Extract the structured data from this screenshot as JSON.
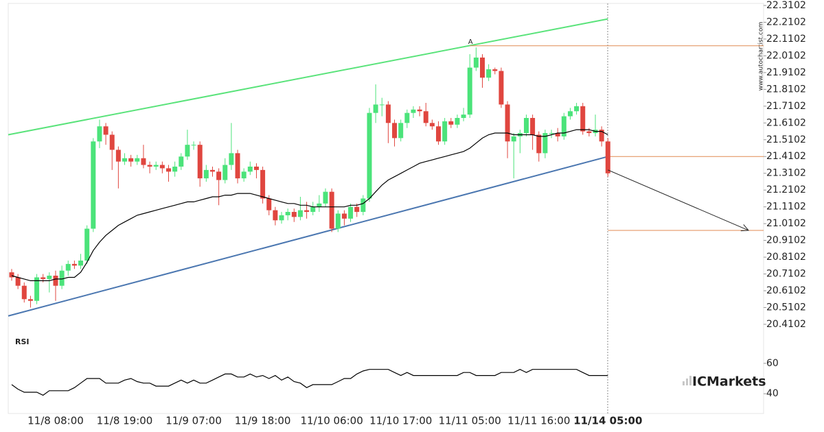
{
  "chart_data": {
    "type": "candlestick",
    "rsi_label": "RSI",
    "pattern_label": "A",
    "watermark": "www.autochartist.com",
    "brand": "ICMarkets",
    "up_color": "#4be37a",
    "down_color": "#e0463f",
    "ylim": [
      20.3405,
      22.3225
    ],
    "yticks": [
      20.4102,
      20.5102,
      20.6102,
      20.7102,
      20.8102,
      20.9102,
      21.0102,
      21.1102,
      21.2102,
      21.3102,
      21.4102,
      21.5102,
      21.6102,
      21.7102,
      21.8102,
      21.9102,
      22.0102,
      22.1102,
      22.2102,
      22.3102
    ],
    "categories": [
      null,
      null,
      null,
      null,
      null,
      null,
      null,
      "11/8 08:00",
      null,
      null,
      null,
      null,
      null,
      null,
      null,
      null,
      null,
      null,
      "11/8 19:00",
      null,
      null,
      null,
      null,
      null,
      null,
      null,
      null,
      null,
      null,
      "11/9 07:00",
      null,
      null,
      null,
      null,
      null,
      null,
      null,
      null,
      null,
      null,
      "11/9 18:00",
      null,
      null,
      null,
      null,
      null,
      null,
      null,
      null,
      null,
      null,
      "11/10 06:00",
      null,
      null,
      null,
      null,
      null,
      null,
      null,
      null,
      null,
      null,
      "11/10 17:00",
      null,
      null,
      null,
      null,
      null,
      null,
      null,
      null,
      null,
      null,
      "11/11 05:00",
      null,
      null,
      null,
      null,
      null,
      null,
      null,
      null,
      null,
      null,
      "11/11 16:00",
      null,
      null,
      null,
      null,
      null,
      null,
      null,
      null,
      null,
      null,
      "11/14 05:00"
    ],
    "open": [
      20.72,
      20.69,
      20.64,
      20.56,
      20.55,
      20.69,
      20.68,
      20.7,
      20.64,
      20.73,
      20.77,
      20.76,
      20.79,
      20.98,
      21.5,
      21.59,
      21.54,
      21.45,
      21.38,
      21.4,
      21.38,
      21.4,
      21.36,
      21.35,
      21.36,
      21.34,
      21.32,
      21.35,
      21.41,
      21.48,
      21.48,
      21.28,
      21.33,
      21.32,
      21.27,
      21.36,
      21.43,
      21.28,
      21.32,
      21.35,
      21.33,
      21.16,
      21.09,
      21.03,
      21.06,
      21.08,
      21.05,
      21.09,
      21.08,
      21.11,
      21.13,
      21.2,
      20.98,
      21.07,
      21.04,
      21.11,
      21.08,
      21.16,
      21.67,
      21.72,
      21.72,
      21.61,
      21.52,
      21.61,
      21.67,
      21.69,
      21.68,
      21.61,
      21.59,
      21.5,
      21.62,
      21.6,
      21.64,
      21.66,
      21.94,
      22.0,
      21.88,
      21.93,
      21.92,
      21.72,
      21.5,
      21.53,
      21.55,
      21.64,
      21.54,
      21.43,
      21.55,
      21.55,
      21.53,
      21.65,
      21.68,
      21.71,
      21.56,
      21.55,
      21.57,
      21.5
    ],
    "high": [
      20.74,
      20.71,
      20.66,
      20.58,
      20.71,
      20.71,
      20.72,
      20.73,
      20.76,
      20.79,
      20.79,
      20.83,
      21.0,
      21.52,
      21.63,
      21.61,
      21.56,
      21.47,
      21.43,
      21.42,
      21.42,
      21.48,
      21.38,
      21.38,
      21.38,
      21.36,
      21.38,
      21.43,
      21.57,
      21.5,
      21.5,
      21.36,
      21.35,
      21.34,
      21.4,
      21.61,
      21.45,
      21.34,
      21.38,
      21.37,
      21.35,
      21.18,
      21.11,
      21.08,
      21.1,
      21.1,
      21.17,
      21.14,
      21.14,
      21.18,
      21.22,
      21.22,
      21.09,
      21.09,
      21.13,
      21.13,
      21.18,
      21.7,
      21.84,
      21.76,
      21.74,
      21.63,
      21.63,
      21.69,
      21.71,
      21.71,
      21.73,
      21.63,
      21.62,
      21.64,
      21.64,
      21.66,
      21.7,
      22.02,
      22.06,
      22.02,
      21.96,
      21.94,
      21.94,
      21.74,
      21.55,
      21.57,
      21.66,
      21.66,
      21.56,
      21.57,
      21.57,
      21.58,
      21.67,
      21.7,
      21.73,
      21.73,
      21.58,
      21.66,
      21.59,
      21.52
    ],
    "low": [
      20.67,
      20.62,
      20.54,
      20.51,
      20.53,
      20.66,
      20.6,
      20.55,
      20.62,
      20.7,
      20.74,
      20.74,
      20.77,
      20.96,
      21.46,
      21.48,
      21.33,
      21.22,
      21.36,
      21.35,
      21.36,
      21.34,
      21.31,
      21.33,
      21.31,
      21.26,
      21.29,
      21.33,
      21.39,
      21.45,
      21.23,
      21.26,
      21.29,
      21.12,
      21.25,
      21.33,
      21.25,
      21.26,
      21.3,
      21.28,
      21.13,
      21.06,
      21.0,
      21.01,
      21.03,
      21.02,
      21.03,
      21.04,
      21.06,
      21.08,
      21.11,
      20.96,
      20.96,
      21.0,
      21.02,
      21.05,
      21.06,
      21.14,
      21.61,
      21.65,
      21.49,
      21.47,
      21.5,
      21.58,
      21.64,
      21.65,
      21.59,
      21.57,
      21.48,
      21.48,
      21.58,
      21.58,
      21.62,
      21.64,
      21.92,
      21.82,
      21.86,
      21.9,
      21.7,
      21.4,
      21.28,
      21.43,
      21.53,
      21.45,
      21.38,
      21.4,
      21.52,
      21.5,
      21.51,
      21.63,
      21.66,
      21.54,
      21.53,
      21.53,
      21.47,
      21.29
    ],
    "close": [
      20.69,
      20.64,
      20.56,
      20.55,
      20.69,
      20.68,
      20.7,
      20.64,
      20.73,
      20.77,
      20.76,
      20.79,
      20.98,
      21.5,
      21.59,
      21.54,
      21.45,
      21.38,
      21.4,
      21.38,
      21.4,
      21.36,
      21.35,
      21.36,
      21.34,
      21.32,
      21.35,
      21.41,
      21.48,
      21.48,
      21.28,
      21.33,
      21.32,
      21.27,
      21.36,
      21.43,
      21.28,
      21.32,
      21.35,
      21.33,
      21.16,
      21.09,
      21.03,
      21.06,
      21.08,
      21.05,
      21.09,
      21.08,
      21.11,
      21.13,
      21.2,
      20.98,
      21.07,
      21.04,
      21.11,
      21.08,
      21.16,
      21.67,
      21.72,
      21.72,
      21.61,
      21.52,
      21.61,
      21.67,
      21.69,
      21.68,
      21.61,
      21.59,
      21.5,
      21.62,
      21.6,
      21.64,
      21.66,
      21.94,
      22.0,
      21.88,
      21.93,
      21.92,
      21.72,
      21.5,
      21.53,
      21.55,
      21.64,
      21.54,
      21.43,
      21.55,
      21.55,
      21.53,
      21.65,
      21.68,
      21.71,
      21.56,
      21.55,
      21.57,
      21.5,
      21.31
    ],
    "ma": {
      "color": "#000000",
      "values": [
        20.7,
        20.69,
        20.68,
        20.67,
        20.67,
        20.67,
        20.67,
        20.68,
        20.68,
        20.69,
        20.69,
        20.72,
        20.78,
        20.85,
        20.9,
        20.94,
        20.97,
        21.0,
        21.02,
        21.04,
        21.06,
        21.07,
        21.08,
        21.09,
        21.1,
        21.11,
        21.12,
        21.13,
        21.14,
        21.14,
        21.15,
        21.16,
        21.17,
        21.17,
        21.18,
        21.18,
        21.19,
        21.19,
        21.19,
        21.18,
        21.17,
        21.16,
        21.15,
        21.14,
        21.13,
        21.13,
        21.12,
        21.12,
        21.11,
        21.11,
        21.11,
        21.11,
        21.11,
        21.11,
        21.12,
        21.12,
        21.13,
        21.16,
        21.2,
        21.24,
        21.27,
        21.29,
        21.31,
        21.33,
        21.35,
        21.37,
        21.38,
        21.39,
        21.4,
        21.41,
        21.42,
        21.43,
        21.44,
        21.46,
        21.49,
        21.52,
        21.54,
        21.55,
        21.55,
        21.55,
        21.54,
        21.54,
        21.54,
        21.54,
        21.53,
        21.53,
        21.54,
        21.55,
        21.55,
        21.56,
        21.57,
        21.57,
        21.57,
        21.56,
        21.56,
        21.54
      ]
    },
    "upper_line": {
      "color": "#59e37a",
      "values": [
        21.54,
        22.23
      ]
    },
    "lower_line": {
      "color": "#4a76b0",
      "values": [
        20.46,
        21.41
      ]
    },
    "levels": {
      "color": "#e08a50",
      "values": [
        22.07,
        21.41,
        20.97
      ]
    },
    "forecast": {
      "color": "#222222",
      "values": [
        21.33,
        20.97
      ]
    },
    "rsi": {
      "color": "#000000",
      "ylim": [
        27,
        78
      ],
      "yticks": [
        60,
        40
      ],
      "values": [
        46,
        43,
        41,
        41,
        41,
        39,
        42,
        42,
        42,
        42,
        44,
        47,
        50,
        50,
        50,
        47,
        47,
        47,
        49,
        50,
        48,
        47,
        47,
        45,
        45,
        45,
        47,
        49,
        47,
        49,
        47,
        47,
        49,
        51,
        53,
        53,
        51,
        51,
        53,
        51,
        52,
        50,
        52,
        49,
        51,
        48,
        47,
        44,
        46,
        46,
        46,
        46,
        48,
        50,
        50,
        53,
        55,
        56,
        56,
        56,
        56,
        54,
        52,
        54,
        52,
        52,
        52,
        52,
        52,
        52,
        52,
        52,
        54,
        54,
        52,
        52,
        52,
        52,
        54,
        54,
        54,
        56,
        54,
        56,
        56,
        56,
        56,
        56,
        56,
        56,
        56,
        54,
        52,
        52,
        52,
        52
      ]
    }
  }
}
